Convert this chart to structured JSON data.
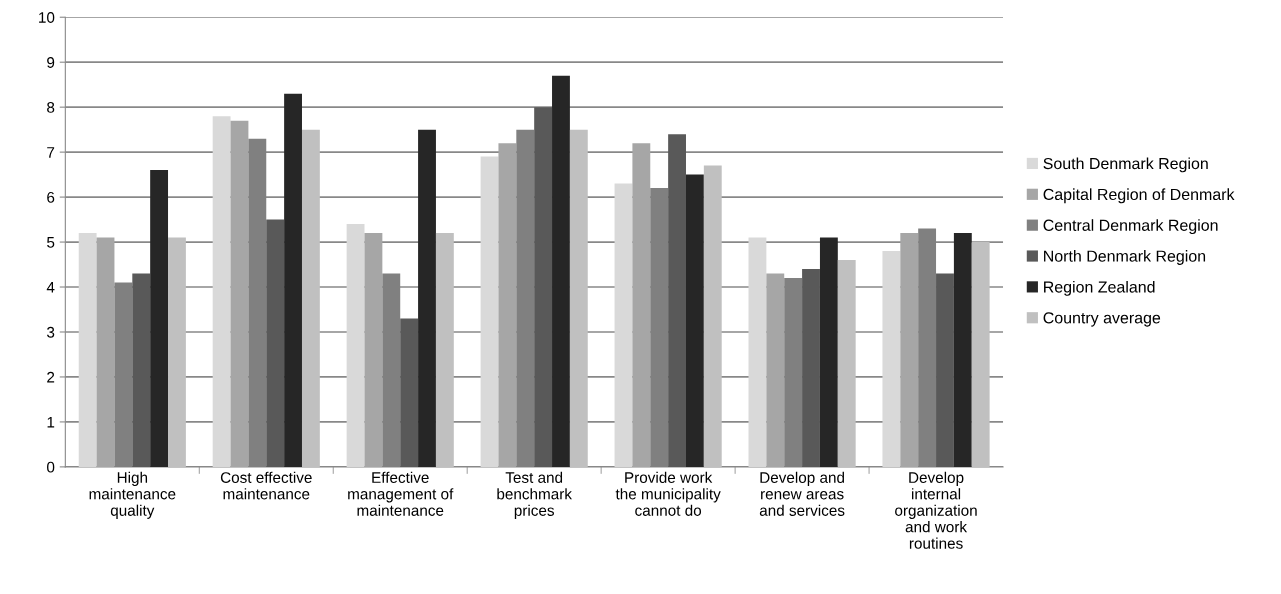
{
  "chart_data": {
    "type": "bar",
    "categories": [
      "High\nmaintenance\nquality",
      "Cost effective\nmaintenance",
      "Effective\nmanagement of\nmaintenance",
      "Test and\nbenchmark\nprices",
      "Provide work\nthe municipality\ncannot do",
      "Develop and\nrenew areas\nand services",
      "Develop\ninternal\norganization\nand work\nroutines"
    ],
    "series": [
      {
        "name": "South Denmark Region",
        "color": "#d9d9d9",
        "values": [
          5.2,
          7.8,
          5.4,
          6.9,
          6.3,
          5.1,
          4.8
        ]
      },
      {
        "name": "Capital Region of Denmark",
        "color": "#a6a6a6",
        "values": [
          5.1,
          7.7,
          5.2,
          7.2,
          7.2,
          4.3,
          5.2
        ]
      },
      {
        "name": "Central Denmark Region",
        "color": "#808080",
        "values": [
          4.1,
          7.3,
          4.3,
          7.5,
          6.2,
          4.2,
          5.3
        ]
      },
      {
        "name": "North Denmark Region",
        "color": "#595959",
        "values": [
          4.3,
          5.5,
          3.3,
          8.0,
          7.4,
          4.4,
          4.3
        ]
      },
      {
        "name": "Region Zealand",
        "color": "#262626",
        "values": [
          6.6,
          8.3,
          7.5,
          8.7,
          6.5,
          5.1,
          5.2
        ]
      },
      {
        "name": "Country average",
        "color": "#c0c0c0",
        "values": [
          5.1,
          7.5,
          5.2,
          7.5,
          6.7,
          4.6,
          5.0
        ]
      }
    ],
    "ylim": [
      0,
      10
    ],
    "yticks": [
      0,
      1,
      2,
      3,
      4,
      5,
      6,
      7,
      8,
      9,
      10
    ],
    "grid": "y",
    "legend": "right"
  }
}
